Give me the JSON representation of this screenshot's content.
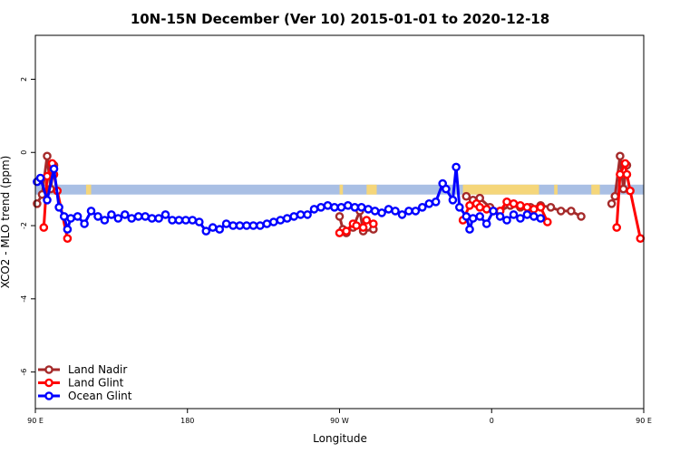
{
  "chart_data": {
    "type": "line",
    "title": "10N-15N December (Ver 10)   2015-01-01 to 2020-12-18",
    "xlabel": "Longitude",
    "ylabel": "XCO2 - MLO trend (ppm)",
    "xlim": [
      90,
      450
    ],
    "ylim": [
      -7,
      3.2
    ],
    "x_ticks": [
      {
        "value": 90,
        "label": "90 E"
      },
      {
        "value": 180,
        "label": "180"
      },
      {
        "value": 270,
        "label": "90 W"
      },
      {
        "value": 360,
        "label": "0"
      },
      {
        "value": 450,
        "label": "90 E"
      },
      {
        "value": 540,
        "label": "180"
      }
    ],
    "y_ticks": [
      {
        "value": 2,
        "label": "2"
      },
      {
        "value": 0,
        "label": "0"
      },
      {
        "value": -2,
        "label": "-2"
      },
      {
        "value": -4,
        "label": "-4"
      },
      {
        "value": -6,
        "label": "-6"
      }
    ],
    "grid": false,
    "legend_position": "bottom-left",
    "map_strip": {
      "y_range": [
        -1.15,
        -0.88
      ],
      "ocean_color": "#a9bfe4",
      "land_color": "#f5d67a",
      "land_segments": [
        [
          96,
          97
        ],
        [
          120,
          123
        ],
        [
          270,
          272
        ],
        [
          286,
          292
        ],
        [
          343,
          388
        ],
        [
          397,
          399
        ],
        [
          419,
          424
        ],
        [
          467,
          469
        ],
        [
          474,
          480
        ],
        [
          485,
          487
        ]
      ]
    },
    "series": [
      {
        "name": "Land Nadir",
        "color": "#a52a2a",
        "segments": [
          [
            [
              91,
              -1.4
            ],
            [
              94,
              -1.15
            ],
            [
              97,
              -0.1
            ],
            [
              99,
              -1.0
            ],
            [
              101,
              -0.35
            ]
          ],
          [
            [
              270,
              -1.75
            ],
            [
              272,
              -2.1
            ],
            [
              274,
              -2.2
            ],
            [
              278,
              -2.05
            ],
            [
              282,
              -1.6
            ],
            [
              284,
              -2.15
            ],
            [
              290,
              -2.1
            ]
          ],
          [
            [
              345,
              -1.2
            ],
            [
              349,
              -1.3
            ],
            [
              353,
              -1.25
            ],
            [
              359,
              -1.5
            ],
            [
              365,
              -1.6
            ],
            [
              371,
              -1.45
            ],
            [
              377,
              -1.5
            ],
            [
              383,
              -1.5
            ],
            [
              389,
              -1.45
            ],
            [
              395,
              -1.5
            ],
            [
              401,
              -1.6
            ],
            [
              407,
              -1.6
            ],
            [
              413,
              -1.75
            ]
          ],
          [
            [
              431,
              -1.4
            ],
            [
              433,
              -1.2
            ],
            [
              436,
              -0.1
            ],
            [
              438,
              -1.0
            ],
            [
              440,
              -0.35
            ]
          ]
        ]
      },
      {
        "name": "Land Glint",
        "color": "#ff0000",
        "segments": [
          [
            [
              95,
              -2.05
            ],
            [
              97,
              -0.65
            ],
            [
              100,
              -0.3
            ],
            [
              101,
              -0.6
            ],
            [
              103,
              -1.05
            ],
            [
              109,
              -2.35
            ]
          ],
          [
            [
              270,
              -2.2
            ],
            [
              274,
              -2.15
            ],
            [
              278,
              -1.95
            ],
            [
              280,
              -2.0
            ],
            [
              284,
              -2.05
            ],
            [
              286,
              -1.85
            ],
            [
              290,
              -1.95
            ]
          ],
          [
            [
              343,
              -1.85
            ],
            [
              347,
              -1.45
            ],
            [
              351,
              -1.4
            ],
            [
              353,
              -1.5
            ],
            [
              357,
              -1.55
            ],
            [
              361,
              -1.6
            ],
            [
              365,
              -1.6
            ],
            [
              369,
              -1.35
            ],
            [
              373,
              -1.4
            ],
            [
              377,
              -1.45
            ],
            [
              381,
              -1.5
            ],
            [
              385,
              -1.55
            ],
            [
              389,
              -1.5
            ],
            [
              393,
              -1.9
            ]
          ],
          [
            [
              434,
              -2.05
            ],
            [
              436,
              -0.6
            ],
            [
              439,
              -0.3
            ],
            [
              440,
              -0.6
            ],
            [
              442,
              -1.05
            ],
            [
              448,
              -2.35
            ]
          ]
        ]
      },
      {
        "name": "Ocean Glint",
        "color": "#0000ff",
        "segments": [
          [
            [
              91,
              -0.8
            ],
            [
              93,
              -0.7
            ],
            [
              97,
              -1.3
            ],
            [
              101,
              -0.45
            ],
            [
              104,
              -1.5
            ],
            [
              107,
              -1.75
            ],
            [
              109,
              -2.1
            ],
            [
              111,
              -1.8
            ],
            [
              115,
              -1.75
            ],
            [
              119,
              -1.95
            ],
            [
              123,
              -1.6
            ],
            [
              127,
              -1.75
            ],
            [
              131,
              -1.85
            ],
            [
              135,
              -1.7
            ],
            [
              139,
              -1.8
            ],
            [
              143,
              -1.7
            ],
            [
              147,
              -1.8
            ],
            [
              151,
              -1.75
            ],
            [
              155,
              -1.75
            ],
            [
              159,
              -1.8
            ],
            [
              163,
              -1.8
            ],
            [
              167,
              -1.7
            ],
            [
              171,
              -1.85
            ],
            [
              175,
              -1.85
            ],
            [
              179,
              -1.85
            ],
            [
              183,
              -1.85
            ],
            [
              187,
              -1.9
            ],
            [
              191,
              -2.15
            ],
            [
              195,
              -2.05
            ],
            [
              199,
              -2.1
            ],
            [
              203,
              -1.95
            ],
            [
              207,
              -2.0
            ],
            [
              211,
              -2.0
            ],
            [
              215,
              -2.0
            ],
            [
              219,
              -2.0
            ],
            [
              223,
              -2.0
            ],
            [
              227,
              -1.95
            ],
            [
              231,
              -1.9
            ],
            [
              235,
              -1.85
            ],
            [
              239,
              -1.8
            ],
            [
              243,
              -1.75
            ],
            [
              247,
              -1.7
            ],
            [
              251,
              -1.7
            ],
            [
              255,
              -1.55
            ],
            [
              259,
              -1.5
            ],
            [
              263,
              -1.45
            ],
            [
              267,
              -1.5
            ],
            [
              271,
              -1.5
            ],
            [
              275,
              -1.45
            ],
            [
              279,
              -1.5
            ],
            [
              283,
              -1.5
            ],
            [
              287,
              -1.55
            ],
            [
              291,
              -1.6
            ],
            [
              295,
              -1.65
            ],
            [
              299,
              -1.55
            ],
            [
              303,
              -1.6
            ],
            [
              307,
              -1.7
            ],
            [
              311,
              -1.6
            ],
            [
              315,
              -1.6
            ],
            [
              319,
              -1.5
            ],
            [
              323,
              -1.4
            ],
            [
              327,
              -1.35
            ],
            [
              331,
              -0.85
            ],
            [
              333,
              -1.0
            ],
            [
              337,
              -1.3
            ],
            [
              339,
              -0.4
            ],
            [
              341,
              -1.5
            ],
            [
              345,
              -1.75
            ],
            [
              347,
              -2.1
            ],
            [
              349,
              -1.8
            ],
            [
              353,
              -1.75
            ],
            [
              357,
              -1.95
            ],
            [
              361,
              -1.6
            ],
            [
              365,
              -1.75
            ],
            [
              369,
              -1.85
            ],
            [
              373,
              -1.7
            ],
            [
              377,
              -1.8
            ],
            [
              381,
              -1.7
            ],
            [
              385,
              -1.75
            ],
            [
              389,
              -1.8
            ]
          ]
        ]
      }
    ]
  }
}
